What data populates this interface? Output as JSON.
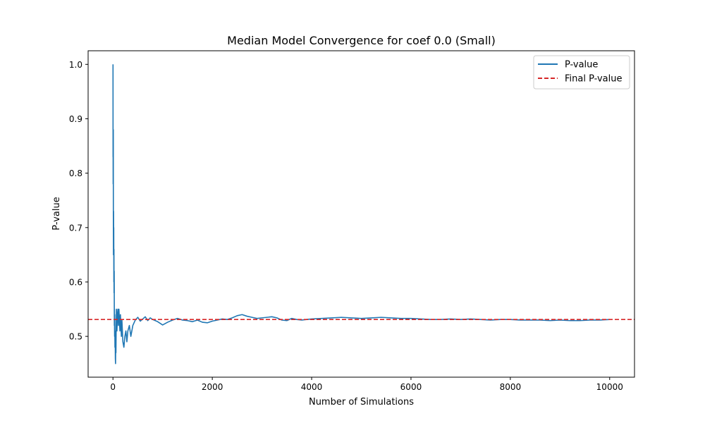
{
  "chart_data": {
    "type": "line",
    "title": "Median Model Convergence for coef 0.0 (Small)",
    "xlabel": "Number of Simulations",
    "ylabel": "P-value",
    "xlim": [
      -500,
      10500
    ],
    "ylim": [
      0.425,
      1.025
    ],
    "xticks": [
      0,
      2000,
      4000,
      6000,
      8000,
      10000
    ],
    "xtick_labels": [
      "0",
      "2000",
      "4000",
      "6000",
      "8000",
      "10000"
    ],
    "yticks": [
      0.5,
      0.6,
      0.7,
      0.8,
      0.9,
      1.0
    ],
    "ytick_labels": [
      "0.5",
      "0.6",
      "0.7",
      "0.8",
      "0.9",
      "1.0"
    ],
    "grid": false,
    "legend_position": "top-right",
    "series": [
      {
        "name": "P-value",
        "color": "#1f77b4",
        "style": "solid",
        "x": [
          1,
          2,
          3,
          4,
          5,
          6,
          7,
          8,
          10,
          12,
          14,
          16,
          18,
          20,
          22,
          25,
          28,
          30,
          33,
          36,
          40,
          44,
          48,
          52,
          56,
          60,
          65,
          70,
          75,
          80,
          90,
          100,
          110,
          120,
          130,
          140,
          150,
          160,
          170,
          180,
          190,
          200,
          220,
          240,
          260,
          280,
          300,
          330,
          360,
          400,
          450,
          500,
          550,
          600,
          650,
          700,
          750,
          800,
          900,
          1000,
          1100,
          1200,
          1300,
          1400,
          1500,
          1600,
          1700,
          1800,
          1900,
          2000,
          2100,
          2200,
          2300,
          2400,
          2500,
          2600,
          2700,
          2800,
          2900,
          3000,
          3100,
          3200,
          3300,
          3400,
          3500,
          3600,
          3700,
          3800,
          3900,
          4000,
          4200,
          4400,
          4600,
          4800,
          5000,
          5200,
          5400,
          5600,
          5800,
          6000,
          6200,
          6400,
          6600,
          6800,
          7000,
          7200,
          7400,
          7600,
          7800,
          8000,
          8200,
          8400,
          8600,
          8800,
          9000,
          9200,
          9400,
          9600,
          9800,
          10000
        ],
        "y": [
          1.0,
          0.83,
          0.87,
          0.78,
          0.86,
          0.8,
          0.88,
          0.72,
          0.65,
          0.73,
          0.67,
          0.7,
          0.6,
          0.66,
          0.58,
          0.62,
          0.52,
          0.55,
          0.5,
          0.54,
          0.48,
          0.51,
          0.46,
          0.45,
          0.49,
          0.47,
          0.52,
          0.55,
          0.53,
          0.51,
          0.54,
          0.55,
          0.52,
          0.55,
          0.53,
          0.51,
          0.54,
          0.52,
          0.5,
          0.53,
          0.51,
          0.49,
          0.48,
          0.5,
          0.51,
          0.49,
          0.51,
          0.52,
          0.5,
          0.52,
          0.53,
          0.535,
          0.528,
          0.532,
          0.536,
          0.529,
          0.534,
          0.531,
          0.527,
          0.521,
          0.526,
          0.53,
          0.533,
          0.53,
          0.529,
          0.527,
          0.53,
          0.526,
          0.525,
          0.528,
          0.53,
          0.532,
          0.531,
          0.534,
          0.538,
          0.54,
          0.537,
          0.535,
          0.533,
          0.534,
          0.535,
          0.536,
          0.534,
          0.53,
          0.529,
          0.533,
          0.531,
          0.53,
          0.531,
          0.532,
          0.533,
          0.534,
          0.535,
          0.534,
          0.533,
          0.534,
          0.535,
          0.534,
          0.533,
          0.533,
          0.532,
          0.531,
          0.531,
          0.532,
          0.531,
          0.532,
          0.531,
          0.53,
          0.531,
          0.531,
          0.53,
          0.53,
          0.53,
          0.529,
          0.53,
          0.529,
          0.529,
          0.53,
          0.53,
          0.531
        ]
      },
      {
        "name": "Final P-value",
        "color": "#d62728",
        "style": "dashed",
        "y_constant": 0.531
      }
    ]
  }
}
